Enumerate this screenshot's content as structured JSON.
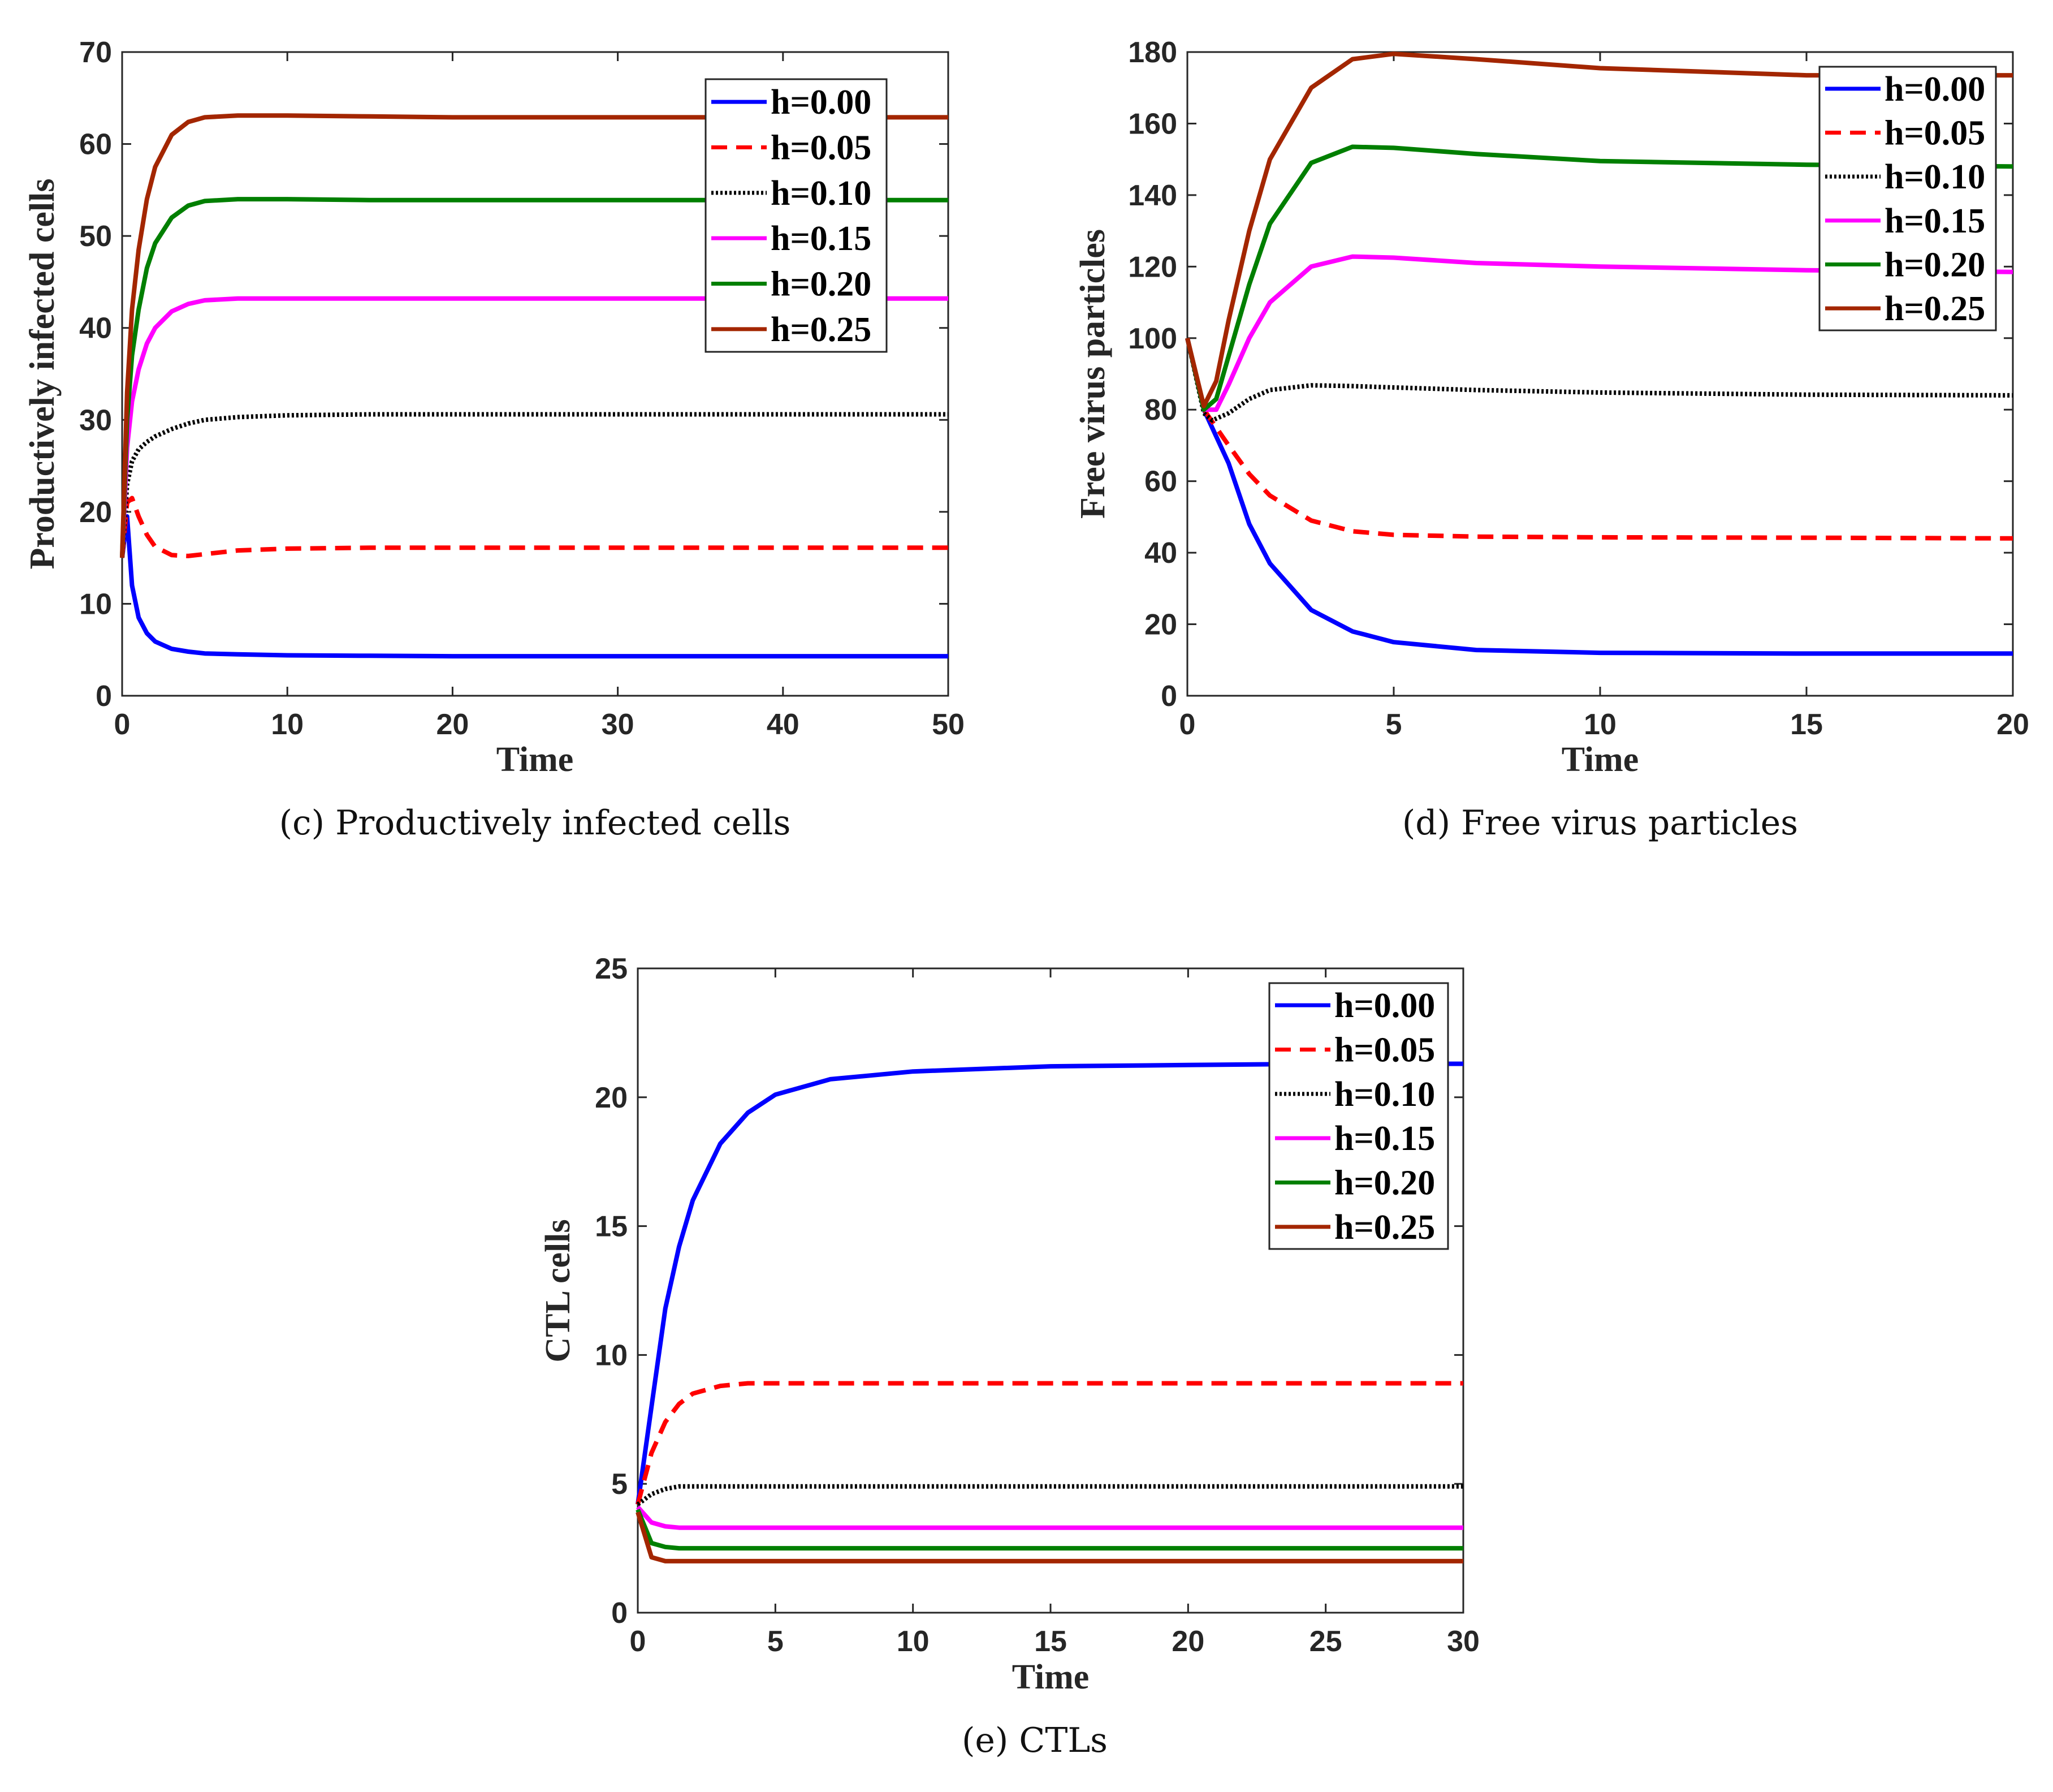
{
  "colors": {
    "h000": "#0000ff",
    "h005": "#ff0000",
    "h010": "#000000",
    "h015": "#ff00ff",
    "h020": "#007f00",
    "h025": "#a32600"
  },
  "chart_data": [
    {
      "id": "c",
      "type": "line",
      "caption": "(c)  Productively infected cells",
      "xlabel": "Time",
      "ylabel": "Productively infected cells",
      "xlim": [
        0,
        50
      ],
      "ylim": [
        0,
        70
      ],
      "xticks": [
        0,
        10,
        20,
        30,
        40,
        50
      ],
      "yticks": [
        0,
        10,
        20,
        30,
        40,
        50,
        60,
        70
      ],
      "legend_position": "top-right",
      "series": [
        {
          "name": "h=0.00",
          "color": "#0000ff",
          "dash": "solid",
          "x": [
            0,
            0.3,
            0.6,
            1,
            1.5,
            2,
            3,
            4,
            5,
            7,
            10,
            15,
            20,
            30,
            40,
            50
          ],
          "values": [
            15,
            19.5,
            12,
            8.5,
            6.8,
            5.9,
            5.1,
            4.8,
            4.6,
            4.5,
            4.4,
            4.35,
            4.3,
            4.3,
            4.3,
            4.3
          ]
        },
        {
          "name": "h=0.05",
          "color": "#ff0000",
          "dash": "dashed",
          "x": [
            0,
            0.3,
            0.6,
            1,
            1.5,
            2,
            3,
            4,
            5,
            7,
            10,
            15,
            20,
            30,
            40,
            50
          ],
          "values": [
            15,
            21,
            21.5,
            19.5,
            17.5,
            16.2,
            15.3,
            15.2,
            15.4,
            15.8,
            16,
            16.1,
            16.1,
            16.1,
            16.1,
            16.1
          ]
        },
        {
          "name": "h=0.10",
          "color": "#000000",
          "dash": "dotted",
          "x": [
            0,
            0.3,
            0.6,
            1,
            1.5,
            2,
            3,
            4,
            5,
            7,
            10,
            15,
            20,
            30,
            40,
            50
          ],
          "values": [
            15,
            23,
            25.5,
            26.8,
            27.6,
            28.2,
            29,
            29.6,
            30,
            30.3,
            30.5,
            30.6,
            30.6,
            30.6,
            30.6,
            30.6
          ]
        },
        {
          "name": "h=0.15",
          "color": "#ff00ff",
          "dash": "solid",
          "x": [
            0,
            0.3,
            0.6,
            1,
            1.5,
            2,
            3,
            4,
            5,
            7,
            10,
            15,
            20,
            30,
            40,
            50
          ],
          "values": [
            15,
            27,
            32,
            35.5,
            38.3,
            40,
            41.8,
            42.6,
            43,
            43.2,
            43.2,
            43.2,
            43.2,
            43.2,
            43.2,
            43.2
          ]
        },
        {
          "name": "h=0.20",
          "color": "#007f00",
          "dash": "solid",
          "x": [
            0,
            0.3,
            0.6,
            1,
            1.5,
            2,
            3,
            4,
            5,
            7,
            10,
            15,
            20,
            30,
            40,
            50
          ],
          "values": [
            15,
            30,
            37,
            42,
            46.5,
            49.2,
            52,
            53.3,
            53.8,
            54,
            54,
            53.9,
            53.9,
            53.9,
            53.9,
            53.9
          ]
        },
        {
          "name": "h=0.25",
          "color": "#a32600",
          "dash": "solid",
          "x": [
            0,
            0.3,
            0.6,
            1,
            1.5,
            2,
            3,
            4,
            5,
            7,
            10,
            15,
            20,
            30,
            40,
            50
          ],
          "values": [
            15,
            33,
            42,
            48.5,
            54,
            57.5,
            61,
            62.4,
            62.9,
            63.1,
            63.1,
            63,
            62.9,
            62.9,
            62.9,
            62.9
          ]
        }
      ]
    },
    {
      "id": "d",
      "type": "line",
      "caption": "(d)  Free virus particles",
      "xlabel": "Time",
      "ylabel": "Free virus particles",
      "xlim": [
        0,
        20
      ],
      "ylim": [
        0,
        180
      ],
      "xticks": [
        0,
        5,
        10,
        15,
        20
      ],
      "yticks": [
        0,
        20,
        40,
        60,
        80,
        100,
        120,
        140,
        160,
        180
      ],
      "legend_position": "top-right",
      "series": [
        {
          "name": "h=0.00",
          "color": "#0000ff",
          "dash": "solid",
          "x": [
            0,
            0.4,
            1,
            1.5,
            2,
            3,
            4,
            5,
            7,
            10,
            15,
            20
          ],
          "values": [
            100,
            80,
            65,
            48,
            37,
            24,
            18,
            15,
            12.8,
            12,
            11.8,
            11.8
          ]
        },
        {
          "name": "h=0.05",
          "color": "#ff0000",
          "dash": "dashed",
          "x": [
            0,
            0.4,
            1,
            1.5,
            2,
            3,
            4,
            5,
            7,
            10,
            15,
            20
          ],
          "values": [
            100,
            80,
            70,
            62,
            56,
            49,
            46,
            45,
            44.5,
            44.3,
            44.2,
            44
          ]
        },
        {
          "name": "h=0.10",
          "color": "#000000",
          "dash": "dotted",
          "x": [
            0,
            0.4,
            0.6,
            1,
            1.5,
            2,
            3,
            4,
            5,
            7,
            10,
            15,
            20
          ],
          "values": [
            100,
            79,
            77,
            79,
            83,
            85.5,
            86.8,
            86.6,
            86.2,
            85.5,
            84.8,
            84.2,
            84
          ]
        },
        {
          "name": "h=0.15",
          "color": "#ff00ff",
          "dash": "solid",
          "x": [
            0,
            0.4,
            0.7,
            1,
            1.5,
            2,
            3,
            4,
            5,
            7,
            10,
            15,
            20
          ],
          "values": [
            100,
            80,
            80,
            87,
            100,
            110,
            120,
            122.8,
            122.5,
            121,
            120,
            119,
            118.5
          ]
        },
        {
          "name": "h=0.20",
          "color": "#007f00",
          "dash": "solid",
          "x": [
            0,
            0.4,
            0.7,
            1,
            1.5,
            2,
            3,
            4,
            5,
            7,
            10,
            15,
            20
          ],
          "values": [
            100,
            80,
            83,
            95,
            115,
            132,
            149,
            153.5,
            153.2,
            151.5,
            149.5,
            148.5,
            148
          ]
        },
        {
          "name": "h=0.25",
          "color": "#a32600",
          "dash": "solid",
          "x": [
            0,
            0.4,
            0.7,
            1,
            1.5,
            2,
            3,
            4,
            5,
            7,
            10,
            15,
            20
          ],
          "values": [
            100,
            81,
            88,
            105,
            130,
            150,
            170,
            178,
            179.5,
            178,
            175.5,
            173.5,
            173.5
          ]
        }
      ]
    },
    {
      "id": "e",
      "type": "line",
      "caption": "(e)  CTLs",
      "xlabel": "Time",
      "ylabel": "CTL cells",
      "xlim": [
        0,
        30
      ],
      "ylim": [
        0,
        25
      ],
      "xticks": [
        0,
        5,
        10,
        15,
        20,
        25,
        30
      ],
      "yticks": [
        0,
        5,
        10,
        15,
        20,
        25
      ],
      "legend_position": "top-right",
      "series": [
        {
          "name": "h=0.00",
          "color": "#0000ff",
          "dash": "solid",
          "x": [
            0,
            0.5,
            1,
            1.5,
            2,
            3,
            4,
            5,
            7,
            10,
            15,
            20,
            25,
            30
          ],
          "values": [
            4.2,
            8,
            11.8,
            14.2,
            16,
            18.2,
            19.4,
            20.1,
            20.7,
            21,
            21.2,
            21.25,
            21.3,
            21.3
          ]
        },
        {
          "name": "h=0.05",
          "color": "#ff0000",
          "dash": "dashed",
          "x": [
            0,
            0.5,
            1,
            1.5,
            2,
            3,
            4,
            5,
            7,
            10,
            15,
            20,
            25,
            30
          ],
          "values": [
            4.2,
            6.2,
            7.4,
            8.1,
            8.5,
            8.8,
            8.9,
            8.9,
            8.9,
            8.9,
            8.9,
            8.9,
            8.9,
            8.9
          ]
        },
        {
          "name": "h=0.10",
          "color": "#000000",
          "dash": "dotted",
          "x": [
            0,
            0.5,
            1,
            1.5,
            2,
            3,
            5,
            10,
            20,
            30
          ],
          "values": [
            4.2,
            4.6,
            4.8,
            4.9,
            4.9,
            4.9,
            4.9,
            4.9,
            4.9,
            4.9
          ]
        },
        {
          "name": "h=0.15",
          "color": "#ff00ff",
          "dash": "solid",
          "x": [
            0,
            0.5,
            1,
            1.5,
            2,
            3,
            5,
            10,
            20,
            30
          ],
          "values": [
            4.1,
            3.5,
            3.35,
            3.3,
            3.3,
            3.3,
            3.3,
            3.3,
            3.3,
            3.3
          ]
        },
        {
          "name": "h=0.20",
          "color": "#007f00",
          "dash": "solid",
          "x": [
            0,
            0.5,
            1,
            1.5,
            2,
            3,
            5,
            10,
            20,
            30
          ],
          "values": [
            4,
            2.7,
            2.55,
            2.5,
            2.5,
            2.5,
            2.5,
            2.5,
            2.5,
            2.5
          ]
        },
        {
          "name": "h=0.25",
          "color": "#a32600",
          "dash": "solid",
          "x": [
            0,
            0.5,
            1,
            1.5,
            2,
            3,
            5,
            10,
            20,
            30
          ],
          "values": [
            3.9,
            2.15,
            2,
            2,
            2,
            2,
            2,
            2,
            2,
            2
          ]
        }
      ]
    }
  ]
}
